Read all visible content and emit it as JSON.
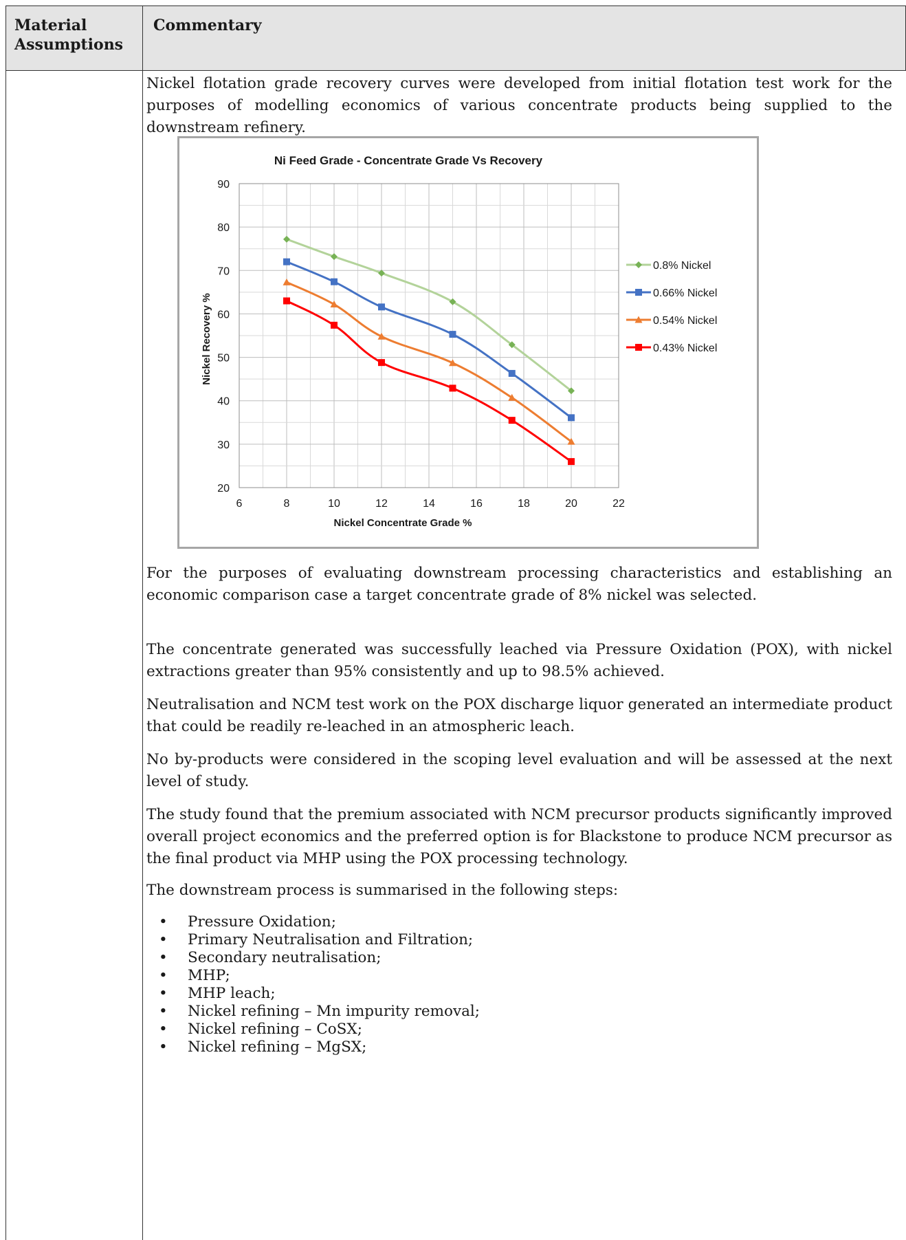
{
  "table": {
    "header_col1": "Material Assumptions",
    "header_col2": "Commentary"
  },
  "paragraphs": {
    "p1": "Nickel flotation grade recovery curves were developed from initial flotation test work for the purposes of modelling economics of various concentrate products being supplied to the downstream refinery.",
    "p2": "For the purposes of evaluating downstream processing characteristics and establishing an economic comparison case a target concentrate grade of 8% nickel was selected.",
    "p3": "The concentrate generated was successfully leached via Pressure Oxidation (POX), with nickel extractions greater than 95% consistently and up to 98.5% achieved.",
    "p4": "Neutralisation and NCM test work on the POX discharge liquor generated an intermediate product that could be readily re-leached in an atmospheric leach.",
    "p5": "No by-products were considered in the scoping level evaluation and will be assessed at the next level of study.",
    "p6": "The study found that the premium associated with NCM precursor products significantly improved overall project economics and the preferred option is for Blackstone to produce NCM precursor as the final product via MHP using the POX processing technology.",
    "p7": "The downstream process is summarised in the following steps:"
  },
  "steps": [
    "Pressure Oxidation;",
    "Primary Neutralisation and Filtration;",
    "Secondary neutralisation;",
    "MHP;",
    "MHP leach;",
    "Nickel refining – Mn impurity removal;",
    "Nickel refining – CoSX;",
    "Nickel refining – MgSX;"
  ],
  "bullet_glyph": "•",
  "chart_data": {
    "type": "line",
    "title": "Ni Feed Grade - Concentrate Grade Vs Recovery",
    "xlabel": "Nickel Concentrate Grade %",
    "ylabel": "Nickel Recovery %",
    "xlim": [
      6,
      22
    ],
    "ylim": [
      20,
      90
    ],
    "xticks": [
      6,
      8,
      10,
      12,
      14,
      16,
      18,
      20,
      22
    ],
    "yticks": [
      20,
      30,
      40,
      50,
      60,
      70,
      80,
      90
    ],
    "grid": true,
    "legend_position": "right",
    "x": [
      8,
      10,
      12,
      15,
      17.5,
      20
    ],
    "series": [
      {
        "name": "0.8% Nickel",
        "color": "#77b255",
        "line_color": "#b3d39a",
        "marker": "diamond",
        "values": [
          77.2,
          73.2,
          69.4,
          62.8,
          52.9,
          42.3
        ]
      },
      {
        "name": "0.66% Nickel",
        "color": "#4472c4",
        "line_color": "#4472c4",
        "marker": "square",
        "values": [
          72.0,
          67.4,
          61.6,
          55.3,
          46.3,
          36.1
        ]
      },
      {
        "name": "0.54% Nickel",
        "color": "#ed7d31",
        "line_color": "#ed7d31",
        "marker": "triangle",
        "values": [
          67.3,
          62.2,
          54.8,
          48.7,
          40.7,
          30.6
        ]
      },
      {
        "name": "0.43% Nickel",
        "color": "#ff0000",
        "line_color": "#ff0000",
        "marker": "square",
        "values": [
          63.0,
          57.4,
          48.8,
          42.9,
          35.5,
          26.0
        ]
      }
    ]
  }
}
